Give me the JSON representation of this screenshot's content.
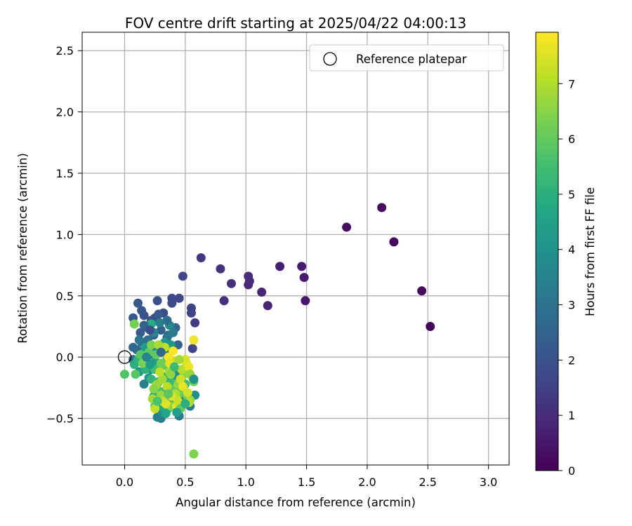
{
  "chart_data": {
    "type": "scatter",
    "title": "FOV centre drift starting at 2025/04/22 04:00:13",
    "xlabel": "Angular distance from reference (arcmin)",
    "ylabel": "Rotation from reference (arcmin)",
    "xlim": [
      -0.35,
      3.17
    ],
    "ylim": [
      -0.88,
      2.65
    ],
    "xticks": [
      "0.0",
      "0.5",
      "1.0",
      "1.5",
      "2.0",
      "2.5",
      "3.0"
    ],
    "yticks": [
      "−0.5",
      "0.0",
      "0.5",
      "1.0",
      "1.5",
      "2.0",
      "2.5"
    ],
    "grid": true,
    "legend": {
      "placement": "top-right",
      "entries": [
        "Reference platepar"
      ]
    },
    "reference_point": {
      "x": 0.0,
      "y": 0.0
    },
    "colorbar": {
      "label": "Hours from first FF file",
      "range": [
        0,
        7.93
      ],
      "ticks": [
        "0",
        "1",
        "2",
        "3",
        "4",
        "5",
        "6",
        "7"
      ],
      "colormap": "viridis"
    },
    "points": [
      [
        2.52,
        0.25,
        0.1
      ],
      [
        2.45,
        0.54,
        0.15
      ],
      [
        2.22,
        0.94,
        0.2
      ],
      [
        2.12,
        1.22,
        0.25
      ],
      [
        1.83,
        1.06,
        0.3
      ],
      [
        1.49,
        0.46,
        0.55
      ],
      [
        1.48,
        0.65,
        0.6
      ],
      [
        1.46,
        0.74,
        0.65
      ],
      [
        1.28,
        0.74,
        0.7
      ],
      [
        1.18,
        0.42,
        0.8
      ],
      [
        1.13,
        0.53,
        0.85
      ],
      [
        1.03,
        0.62,
        0.9
      ],
      [
        1.02,
        0.59,
        0.95
      ],
      [
        1.02,
        0.66,
        1.0
      ],
      [
        0.88,
        0.6,
        1.1
      ],
      [
        0.82,
        0.46,
        1.15
      ],
      [
        0.79,
        0.72,
        1.2
      ],
      [
        0.63,
        0.81,
        1.3
      ],
      [
        0.58,
        0.28,
        1.4
      ],
      [
        0.55,
        0.36,
        1.5
      ],
      [
        0.55,
        0.4,
        1.55
      ],
      [
        0.56,
        0.07,
        1.6
      ],
      [
        0.48,
        0.66,
        1.65
      ],
      [
        0.45,
        0.48,
        1.7
      ],
      [
        0.39,
        0.48,
        1.75
      ],
      [
        0.39,
        0.44,
        1.8
      ],
      [
        0.32,
        0.36,
        1.85
      ],
      [
        0.27,
        0.46,
        1.9
      ],
      [
        0.25,
        0.32,
        1.95
      ],
      [
        0.22,
        0.3,
        2.0
      ],
      [
        0.16,
        0.34,
        2.05
      ],
      [
        0.14,
        0.38,
        2.1
      ],
      [
        0.11,
        0.44,
        2.15
      ],
      [
        0.07,
        0.32,
        2.2
      ],
      [
        0.13,
        0.2,
        2.25
      ],
      [
        0.19,
        0.24,
        2.3
      ],
      [
        0.24,
        0.18,
        2.35
      ],
      [
        0.3,
        0.22,
        2.4
      ],
      [
        0.35,
        0.16,
        2.45
      ],
      [
        0.42,
        0.24,
        2.5
      ],
      [
        0.44,
        0.1,
        2.55
      ],
      [
        0.38,
        0.05,
        2.6
      ],
      [
        0.07,
        0.08,
        2.65
      ],
      [
        0.1,
        0.06,
        2.7
      ],
      [
        0.07,
        -0.02,
        2.75
      ],
      [
        0.14,
        0.12,
        2.8
      ],
      [
        0.19,
        0.14,
        2.85
      ],
      [
        0.2,
        0.02,
        2.9
      ],
      [
        0.26,
        0.08,
        2.95
      ],
      [
        0.33,
        0.04,
        3.0
      ],
      [
        0.36,
        0.18,
        3.05
      ],
      [
        0.42,
        -0.12,
        3.1
      ],
      [
        0.4,
        -0.26,
        3.15
      ],
      [
        0.5,
        -0.34,
        3.2
      ],
      [
        0.54,
        -0.4,
        3.25
      ],
      [
        0.45,
        -0.48,
        3.3
      ],
      [
        0.3,
        -0.5,
        3.35
      ],
      [
        0.27,
        -0.49,
        3.4
      ],
      [
        0.16,
        -0.22,
        3.45
      ],
      [
        0.35,
        -0.34,
        3.5
      ],
      [
        0.24,
        0.2,
        3.6
      ],
      [
        0.37,
        0.26,
        3.7
      ],
      [
        0.43,
        -0.15,
        3.75
      ],
      [
        0.48,
        -0.25,
        3.8
      ],
      [
        0.58,
        -0.31,
        3.85
      ],
      [
        0.31,
        -0.45,
        3.9
      ],
      [
        0.22,
        -0.1,
        3.95
      ],
      [
        0.12,
        -0.12,
        4.0
      ],
      [
        0.2,
        -0.17,
        4.05
      ],
      [
        0.28,
        0.06,
        4.1
      ],
      [
        0.33,
        0.12,
        4.2
      ],
      [
        0.38,
        0.1,
        4.25
      ],
      [
        0.17,
        0.08,
        4.3
      ],
      [
        0.25,
        -0.03,
        4.4
      ],
      [
        0.28,
        -0.1,
        4.5
      ],
      [
        0.24,
        -0.32,
        4.55
      ],
      [
        0.33,
        -0.28,
        4.6
      ],
      [
        0.4,
        -0.35,
        4.7
      ],
      [
        0.3,
        -0.4,
        4.75
      ],
      [
        0.36,
        -0.2,
        4.8
      ],
      [
        0.22,
        0.27,
        4.85
      ],
      [
        0.35,
        -0.02,
        4.9
      ],
      [
        0.08,
        -0.06,
        5.0
      ],
      [
        0.11,
        -0.02,
        5.05
      ],
      [
        0.17,
        -0.1,
        5.1
      ],
      [
        0.22,
        -0.18,
        5.15
      ],
      [
        0.28,
        -0.2,
        5.2
      ],
      [
        0.33,
        -0.16,
        5.25
      ],
      [
        0.39,
        -0.21,
        5.3
      ],
      [
        0.45,
        -0.28,
        5.35
      ],
      [
        0.5,
        -0.22,
        5.4
      ],
      [
        0.31,
        -0.06,
        5.45
      ],
      [
        0.25,
        -0.1,
        5.5
      ],
      [
        0.29,
        -0.28,
        5.55
      ],
      [
        0.36,
        -0.42,
        5.6
      ],
      [
        0.25,
        -0.4,
        5.7
      ],
      [
        0.0,
        -0.14,
        5.75
      ],
      [
        0.09,
        -0.14,
        5.8
      ],
      [
        0.13,
        0.02,
        5.85
      ],
      [
        0.2,
        0.04,
        5.9
      ],
      [
        0.26,
        0.02,
        5.95
      ],
      [
        0.34,
        -0.07,
        6.0
      ],
      [
        0.41,
        -0.26,
        6.05
      ],
      [
        0.47,
        -0.29,
        6.1
      ],
      [
        0.52,
        -0.33,
        6.15
      ],
      [
        0.57,
        -0.2,
        6.2
      ],
      [
        0.08,
        0.27,
        6.25
      ],
      [
        0.15,
        -0.05,
        6.3
      ],
      [
        0.22,
        0.1,
        6.35
      ],
      [
        0.27,
        -0.22,
        6.4
      ],
      [
        0.32,
        -0.33,
        6.45
      ],
      [
        0.38,
        -0.4,
        6.5
      ],
      [
        0.44,
        -0.22,
        6.55
      ],
      [
        0.49,
        -0.14,
        6.6
      ],
      [
        0.54,
        -0.35,
        6.65
      ],
      [
        0.3,
        -0.31,
        6.7
      ],
      [
        0.26,
        -0.23,
        6.75
      ],
      [
        0.23,
        -0.34,
        6.8
      ],
      [
        0.31,
        -0.18,
        6.85
      ],
      [
        0.37,
        -0.12,
        6.9
      ],
      [
        0.42,
        -0.3,
        6.95
      ],
      [
        0.47,
        -0.1,
        7.0
      ],
      [
        0.57,
        -0.79,
        6.4
      ],
      [
        0.53,
        -0.37,
        7.05
      ],
      [
        0.35,
        -0.24,
        7.1
      ],
      [
        0.29,
        -0.12,
        7.15
      ],
      [
        0.25,
        -0.42,
        7.2
      ],
      [
        0.31,
        -0.36,
        7.25
      ],
      [
        0.4,
        -0.03,
        7.3
      ],
      [
        0.46,
        -0.18,
        7.35
      ],
      [
        0.51,
        -0.05,
        7.4
      ],
      [
        0.56,
        -0.17,
        7.45
      ],
      [
        0.39,
        -0.32,
        7.5
      ],
      [
        0.34,
        -0.38,
        7.55
      ],
      [
        0.43,
        -0.4,
        7.6
      ],
      [
        0.48,
        -0.24,
        7.65
      ],
      [
        0.53,
        -0.08,
        7.7
      ],
      [
        0.57,
        0.14,
        7.75
      ],
      [
        0.36,
        0.0,
        7.8
      ],
      [
        0.4,
        0.05,
        7.85
      ],
      [
        0.37,
        -0.05,
        7.6
      ],
      [
        0.5,
        -0.02,
        7.5
      ],
      [
        0.52,
        -0.29,
        7.4
      ],
      [
        0.33,
        0.08,
        7.2
      ],
      [
        0.44,
        -0.36,
        7.3
      ],
      [
        0.28,
        0.1,
        6.9
      ],
      [
        0.45,
        -0.02,
        6.8
      ],
      [
        0.54,
        -0.14,
        6.7
      ],
      [
        0.38,
        -0.14,
        6.6
      ],
      [
        0.24,
        -0.26,
        6.5
      ],
      [
        0.3,
        -0.05,
        6.2
      ],
      [
        0.46,
        -0.42,
        6.0
      ],
      [
        0.36,
        -0.3,
        5.9
      ],
      [
        0.27,
        -0.36,
        5.65
      ],
      [
        0.41,
        -0.08,
        5.35
      ],
      [
        0.5,
        -0.38,
        5.0
      ],
      [
        0.34,
        -0.46,
        4.65
      ],
      [
        0.43,
        -0.45,
        4.45
      ],
      [
        0.21,
        -0.06,
        4.35
      ],
      [
        0.57,
        -0.18,
        4.0
      ],
      [
        0.18,
        0.0,
        3.55
      ],
      [
        0.29,
        0.28,
        3.45
      ],
      [
        0.4,
        0.2,
        3.3
      ],
      [
        0.35,
        0.3,
        2.9
      ],
      [
        0.16,
        0.26,
        2.45
      ],
      [
        0.28,
        0.35,
        2.25
      ],
      [
        0.21,
        0.22,
        1.95
      ],
      [
        0.3,
        0.04,
        2.6
      ],
      [
        0.12,
        0.14,
        3.1
      ]
    ]
  }
}
